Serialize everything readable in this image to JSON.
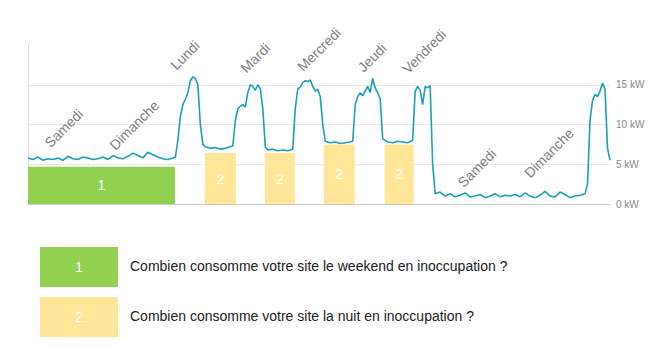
{
  "chart_data": {
    "type": "line",
    "color": "#1ba0b6",
    "x": [
      0,
      2,
      4,
      6,
      8,
      10,
      12,
      14,
      16,
      18,
      20,
      22,
      24,
      26,
      28,
      30,
      32,
      34,
      36,
      38,
      40,
      42,
      44,
      46,
      48,
      50,
      52,
      54,
      56,
      58,
      59,
      60,
      61,
      62,
      63,
      64,
      65,
      66,
      67,
      68,
      69,
      70,
      71,
      73,
      75,
      77,
      79,
      81,
      82,
      83,
      84,
      85,
      86,
      87,
      88,
      89,
      90,
      91,
      92,
      93,
      94,
      95,
      96,
      98,
      100,
      102,
      104,
      106,
      107,
      108,
      109,
      110,
      111,
      112,
      113,
      114,
      115,
      116,
      117,
      118,
      119,
      121,
      123,
      125,
      127,
      129,
      130,
      131,
      132,
      133,
      134,
      135,
      136,
      137,
      138,
      139,
      140,
      141,
      142,
      144,
      146,
      148,
      150,
      152,
      154,
      155,
      156,
      157,
      158,
      159,
      160,
      161,
      162,
      163,
      165,
      167,
      169,
      171,
      173,
      175,
      177,
      179,
      181,
      183,
      185,
      187,
      189,
      191,
      193,
      195,
      197,
      199,
      201,
      203,
      205,
      207,
      209,
      211,
      213,
      215,
      217,
      219,
      221,
      223,
      224,
      225,
      226,
      227,
      228,
      229,
      230,
      231,
      232,
      233
    ],
    "values": [
      5.8,
      5.6,
      5.9,
      5.5,
      5.7,
      5.6,
      5.8,
      5.5,
      6.0,
      5.7,
      5.6,
      5.9,
      5.8,
      5.6,
      5.7,
      5.9,
      5.6,
      6.1,
      5.8,
      5.7,
      6.0,
      6.4,
      6.1,
      5.8,
      6.5,
      6.2,
      5.9,
      5.7,
      5.6,
      5.8,
      5.9,
      8,
      11,
      12.5,
      13.2,
      14,
      15.5,
      16,
      15.8,
      15,
      10,
      7.5,
      7.2,
      7.0,
      7.1,
      6.9,
      7.0,
      7.2,
      7.3,
      10.5,
      12,
      12.3,
      12.5,
      12.2,
      14,
      15,
      14.8,
      14.3,
      15,
      14.5,
      12,
      7.2,
      6.8,
      6.9,
      6.7,
      6.8,
      6.7,
      6.9,
      12,
      14.5,
      14.7,
      15.3,
      15.5,
      15.4,
      15.6,
      14.8,
      14.2,
      14.4,
      13.5,
      10,
      7.9,
      7.7,
      7.8,
      7.6,
      7.7,
      7.8,
      7.9,
      12.5,
      13.5,
      14,
      13.6,
      14.2,
      14.8,
      14,
      15.8,
      14.6,
      14,
      13.2,
      8.2,
      7.8,
      7.7,
      7.9,
      7.8,
      7.7,
      8.0,
      14.2,
      14.8,
      14.3,
      12.5,
      14.8,
      14.6,
      14.9,
      5,
      1.3,
      1.5,
      1.0,
      1.3,
      0.9,
      1.1,
      1.4,
      0.9,
      1.0,
      1.2,
      0.8,
      1.0,
      1.3,
      0.9,
      1.1,
      1.0,
      1.2,
      0.9,
      1.4,
      1.0,
      0.8,
      1.1,
      1.6,
      1.0,
      0.9,
      1.5,
      1.2,
      0.8,
      1.0,
      1.1,
      1.3,
      2.5,
      10.5,
      13,
      13.8,
      13.5,
      14.2,
      15.2,
      14.5,
      7,
      5.5
    ],
    "xlim": [
      0,
      233
    ],
    "ylim": [
      0,
      20
    ],
    "yticks": [
      {
        "value": 0,
        "label": "0 kW"
      },
      {
        "value": 5,
        "label": "5 kW"
      },
      {
        "value": 10,
        "label": "10 kW"
      },
      {
        "value": 15,
        "label": "15 kW"
      }
    ],
    "grid": true,
    "tick_labels": "y",
    "annotations": [
      {
        "text": "Samedi",
        "x": 9.6,
        "y": 6.8
      },
      {
        "text": "Dimanche",
        "x": 35.6,
        "y": 6.5
      },
      {
        "text": "Lundi",
        "x": 60,
        "y": 16.6
      },
      {
        "text": "Mardi",
        "x": 88,
        "y": 16.2
      },
      {
        "text": "Mercredi",
        "x": 110.8,
        "y": 16.4
      },
      {
        "text": "Jeudi",
        "x": 135,
        "y": 16.3
      },
      {
        "text": "Vendredi",
        "x": 152.8,
        "y": 16.1
      },
      {
        "text": "Samedi",
        "x": 175,
        "y": 1.8
      },
      {
        "text": "Dimanche",
        "x": 201.6,
        "y": 3.0
      }
    ],
    "regions": [
      {
        "label": "1",
        "x": [
          0,
          58.8
        ],
        "y": [
          0,
          4.7
        ],
        "color": "#92d050"
      },
      {
        "label": "2",
        "x": [
          70.8,
          83.2
        ],
        "y": [
          0,
          6.4
        ],
        "color": "#ffe699"
      },
      {
        "label": "2",
        "x": [
          94.8,
          106.8
        ],
        "y": [
          0,
          6.4
        ],
        "color": "#ffe699"
      },
      {
        "label": "2",
        "x": [
          118.4,
          130.8
        ],
        "y": [
          0,
          7.5
        ],
        "color": "#ffe699"
      },
      {
        "label": "2",
        "x": [
          142.8,
          154.4
        ],
        "y": [
          0,
          7.5
        ],
        "color": "#ffe699"
      }
    ],
    "notes": [
      {
        "label": "1",
        "text": "Combien consomme votre site le weekend en inoccupation ?",
        "color": "#92d050"
      },
      {
        "label": "2",
        "text": "Combien consomme votre site la nuit en inoccupation ?",
        "color": "#ffe699"
      }
    ]
  }
}
